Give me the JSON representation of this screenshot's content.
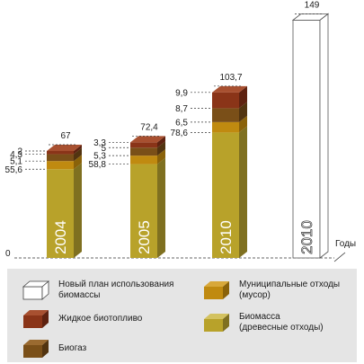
{
  "chart_data": {
    "type": "bar",
    "stacked": true,
    "categories": [
      "2004",
      "2005",
      "2010",
      "2010"
    ],
    "totals": [
      67,
      72.4,
      103.7,
      149
    ],
    "series": [
      {
        "name": "Биомасса (древесные отходы)",
        "color": "#b8a22a",
        "side": "#7f7020",
        "top": "#d3c260",
        "values": [
          55.6,
          58.8,
          78.6,
          0
        ]
      },
      {
        "name": "Муниципальные отходы (мусор)",
        "color": "#c08a10",
        "side": "#8a620a",
        "top": "#d8a83a",
        "values": [
          5.1,
          5.3,
          6.5,
          0
        ]
      },
      {
        "name": "Биогаз",
        "color": "#7a4f18",
        "side": "#523410",
        "top": "#9a6a30",
        "values": [
          4.3,
          5,
          8.7,
          0
        ]
      },
      {
        "name": "Жидкое биотопливо",
        "color": "#8a3418",
        "side": "#5e2210",
        "top": "#a85030",
        "values": [
          2,
          3.3,
          9.9,
          0
        ]
      },
      {
        "name": "Новый план использования биомассы",
        "color": "#ffffff",
        "side": "#ffffff",
        "top": "#ffffff",
        "values": [
          0,
          0,
          0,
          149
        ]
      }
    ],
    "cumulative_labels": [
      [
        "55,6",
        "5,1",
        "4,3",
        "2"
      ],
      [
        "58,8",
        "5,3",
        "5",
        "3,3"
      ],
      [
        "78,6",
        "6,5",
        "8,7",
        "9,9"
      ],
      []
    ],
    "total_labels": [
      "67",
      "72,4",
      "103,7",
      "149"
    ],
    "zero_label": "0",
    "x_axis_label": "Годы",
    "ylim": [
      0,
      149
    ]
  },
  "legend": [
    {
      "label": "Новый план использования\nбиомассы",
      "color": "#ffffff",
      "swatch": "new-plan"
    },
    {
      "label": "Муниципальные отходы\n(мусор)",
      "color": "#c08a10",
      "swatch": "municipal"
    },
    {
      "label": "Жидкое биотопливо",
      "color": "#8a3418",
      "swatch": "liquid"
    },
    {
      "label": "Биомасса\n(древесные отходы)",
      "color": "#b8a22a",
      "swatch": "biomass"
    },
    {
      "label": "Биогаз",
      "color": "#7a4f18",
      "swatch": "biogas"
    }
  ]
}
